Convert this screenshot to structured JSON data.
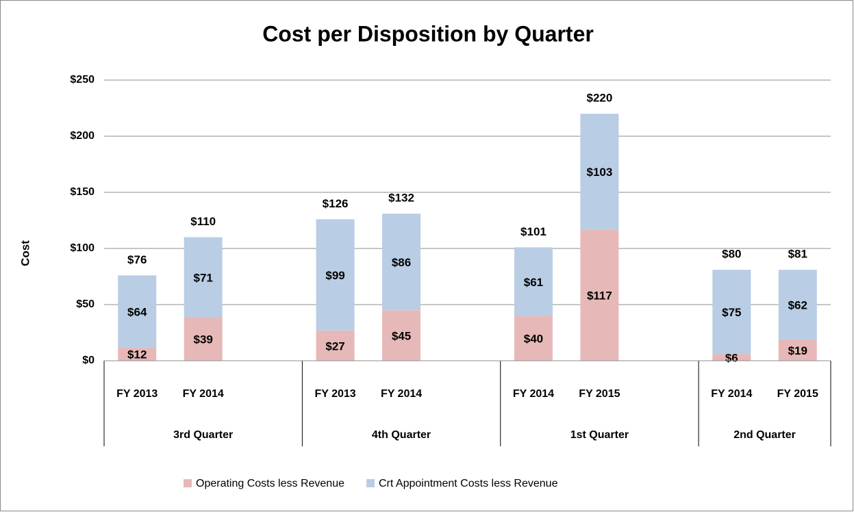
{
  "chart_data": {
    "type": "stacked_bar",
    "title": "Cost per Disposition by Quarter",
    "y_label": "Cost",
    "groups": [
      {
        "label": "3rd Quarter",
        "categories": [
          "FY 2013",
          "FY 2014"
        ]
      },
      {
        "label": "4th Quarter",
        "categories": [
          "FY 2013",
          "FY 2014"
        ]
      },
      {
        "label": "1st Quarter",
        "categories": [
          "FY 2014",
          "FY 2015"
        ]
      },
      {
        "label": "2nd Quarter",
        "categories": [
          "FY 2014",
          "FY 2015"
        ]
      }
    ],
    "series": [
      {
        "name": "Operating Costs less Revenue",
        "color": "#e6b9b8",
        "values": [
          12,
          39,
          27,
          45,
          40,
          117,
          6,
          19
        ],
        "value_labels": [
          "$12",
          "$39",
          "$27",
          "$45",
          "$40",
          "$117",
          "$6",
          "$19"
        ]
      },
      {
        "name": "Crt Appointment Costs less Revenue",
        "color": "#b9cde5",
        "values": [
          64,
          71,
          99,
          86,
          61,
          103,
          75,
          62
        ],
        "value_labels": [
          "$64",
          "$71",
          "$99",
          "$86",
          "$61",
          "$103",
          "$75",
          "$62"
        ]
      }
    ],
    "totals": [
      76,
      110,
      126,
      132,
      101,
      220,
      80,
      81
    ],
    "total_labels": [
      "$76",
      "$110",
      "$126",
      "$132",
      "$101",
      "$220",
      "$80",
      "$81"
    ],
    "ylim": [
      0,
      250
    ],
    "yticks": [
      {
        "value": 0,
        "label": "$0"
      },
      {
        "value": 50,
        "label": "$50"
      },
      {
        "value": 100,
        "label": "$100"
      },
      {
        "value": 150,
        "label": "$150"
      },
      {
        "value": 200,
        "label": "$200"
      },
      {
        "value": 250,
        "label": "$250"
      }
    ],
    "grid": true,
    "legend": "bottom"
  }
}
